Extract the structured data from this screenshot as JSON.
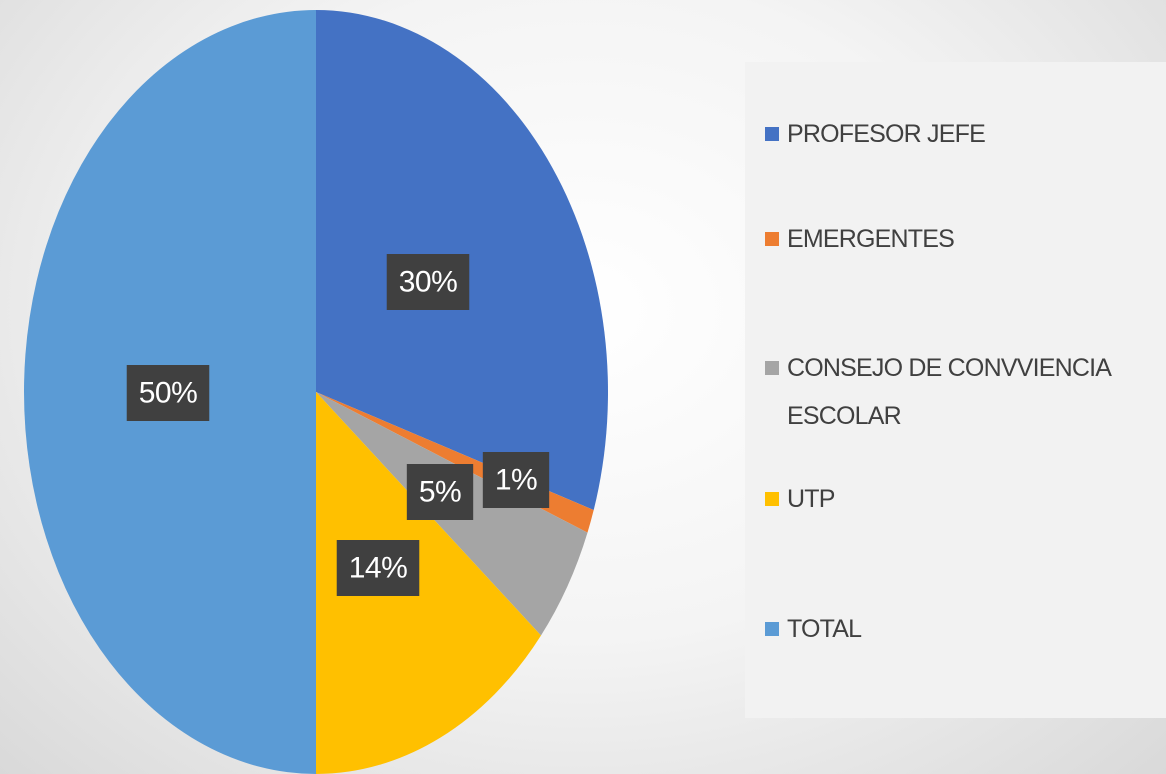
{
  "chart_data": {
    "type": "pie",
    "categories": [
      "PROFESOR JEFE",
      "EMERGENTES",
      "CONSEJO DE CONVVIENCIA ESCOLAR",
      "UTP",
      "TOTAL"
    ],
    "values": [
      30,
      1,
      5,
      14,
      50
    ],
    "value_labels": [
      "30%",
      "1%",
      "5%",
      "14%",
      "50%"
    ],
    "colors": [
      "#4472c4",
      "#ed7d31",
      "#a5a5a5",
      "#ffc000",
      "#5b9bd5"
    ],
    "legend": "right"
  }
}
